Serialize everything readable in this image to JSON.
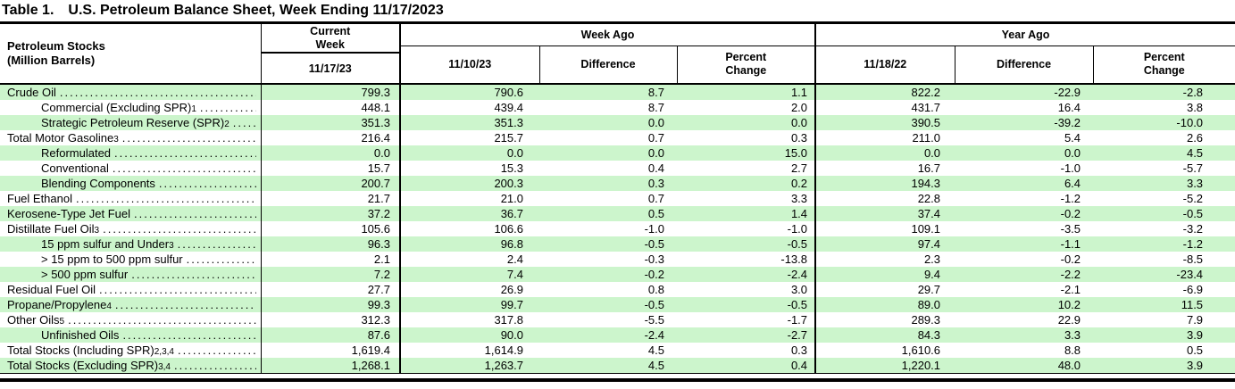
{
  "title": {
    "number": "Table 1.",
    "text": "U.S. Petroleum Balance Sheet, Week Ending 11/17/2023"
  },
  "colors": {
    "row_highlight": "#ccf5cc"
  },
  "header": {
    "stub_line1": "Petroleum Stocks",
    "stub_line2": "(Million Barrels)",
    "current_week_label": "Current Week",
    "current_week_date": "11/17/23",
    "week_ago": {
      "group_label": "Week Ago",
      "date": "11/10/23",
      "difference": "Difference",
      "percent_change": "Percent Change"
    },
    "year_ago": {
      "group_label": "Year Ago",
      "date": "11/18/22",
      "difference": "Difference",
      "percent_change": "Percent Change"
    }
  },
  "table": {
    "rows": [
      {
        "label": "Crude Oil",
        "sup": "",
        "indent": 0,
        "highlight": true,
        "current": "799.3",
        "wk": "790.6",
        "wk_diff": "8.7",
        "wk_pct": "1.1",
        "yr": "822.2",
        "yr_diff": "-22.9",
        "yr_pct": "-2.8"
      },
      {
        "label": "Commercial (Excluding SPR)",
        "sup": "1",
        "indent": 1,
        "highlight": false,
        "current": "448.1",
        "wk": "439.4",
        "wk_diff": "8.7",
        "wk_pct": "2.0",
        "yr": "431.7",
        "yr_diff": "16.4",
        "yr_pct": "3.8"
      },
      {
        "label": "Strategic Petroleum Reserve (SPR)",
        "sup": "2",
        "indent": 1,
        "highlight": true,
        "current": "351.3",
        "wk": "351.3",
        "wk_diff": "0.0",
        "wk_pct": "0.0",
        "yr": "390.5",
        "yr_diff": "-39.2",
        "yr_pct": "-10.0"
      },
      {
        "label": "Total Motor Gasoline",
        "sup": "3",
        "indent": 0,
        "highlight": false,
        "current": "216.4",
        "wk": "215.7",
        "wk_diff": "0.7",
        "wk_pct": "0.3",
        "yr": "211.0",
        "yr_diff": "5.4",
        "yr_pct": "2.6"
      },
      {
        "label": "Reformulated",
        "sup": "",
        "indent": 1,
        "highlight": true,
        "current": "0.0",
        "wk": "0.0",
        "wk_diff": "0.0",
        "wk_pct": "15.0",
        "yr": "0.0",
        "yr_diff": "0.0",
        "yr_pct": "4.5"
      },
      {
        "label": "Conventional",
        "sup": "",
        "indent": 1,
        "highlight": false,
        "current": "15.7",
        "wk": "15.3",
        "wk_diff": "0.4",
        "wk_pct": "2.7",
        "yr": "16.7",
        "yr_diff": "-1.0",
        "yr_pct": "-5.7"
      },
      {
        "label": "Blending Components",
        "sup": "",
        "indent": 1,
        "highlight": true,
        "current": "200.7",
        "wk": "200.3",
        "wk_diff": "0.3",
        "wk_pct": "0.2",
        "yr": "194.3",
        "yr_diff": "6.4",
        "yr_pct": "3.3"
      },
      {
        "label": "Fuel Ethanol",
        "sup": "",
        "indent": 0,
        "highlight": false,
        "current": "21.7",
        "wk": "21.0",
        "wk_diff": "0.7",
        "wk_pct": "3.3",
        "yr": "22.8",
        "yr_diff": "-1.2",
        "yr_pct": "-5.2"
      },
      {
        "label": "Kerosene-Type Jet Fuel",
        "sup": "",
        "indent": 0,
        "highlight": true,
        "current": "37.2",
        "wk": "36.7",
        "wk_diff": "0.5",
        "wk_pct": "1.4",
        "yr": "37.4",
        "yr_diff": "-0.2",
        "yr_pct": "-0.5"
      },
      {
        "label": "Distillate Fuel Oil",
        "sup": "3",
        "indent": 0,
        "highlight": false,
        "current": "105.6",
        "wk": "106.6",
        "wk_diff": "-1.0",
        "wk_pct": "-1.0",
        "yr": "109.1",
        "yr_diff": "-3.5",
        "yr_pct": "-3.2"
      },
      {
        "label": "15 ppm sulfur and Under",
        "sup": "3",
        "indent": 1,
        "highlight": true,
        "current": "96.3",
        "wk": "96.8",
        "wk_diff": "-0.5",
        "wk_pct": "-0.5",
        "yr": "97.4",
        "yr_diff": "-1.1",
        "yr_pct": "-1.2"
      },
      {
        "label": "> 15 ppm to 500 ppm sulfur",
        "sup": "",
        "indent": 1,
        "highlight": false,
        "current": "2.1",
        "wk": "2.4",
        "wk_diff": "-0.3",
        "wk_pct": "-13.8",
        "yr": "2.3",
        "yr_diff": "-0.2",
        "yr_pct": "-8.5"
      },
      {
        "label": "> 500 ppm sulfur",
        "sup": "",
        "indent": 1,
        "highlight": true,
        "current": "7.2",
        "wk": "7.4",
        "wk_diff": "-0.2",
        "wk_pct": "-2.4",
        "yr": "9.4",
        "yr_diff": "-2.2",
        "yr_pct": "-23.4"
      },
      {
        "label": "Residual Fuel Oil",
        "sup": "",
        "indent": 0,
        "highlight": false,
        "current": "27.7",
        "wk": "26.9",
        "wk_diff": "0.8",
        "wk_pct": "3.0",
        "yr": "29.7",
        "yr_diff": "-2.1",
        "yr_pct": "-6.9"
      },
      {
        "label": "Propane/Propylene",
        "sup": "4",
        "indent": 0,
        "highlight": true,
        "current": "99.3",
        "wk": "99.7",
        "wk_diff": "-0.5",
        "wk_pct": "-0.5",
        "yr": "89.0",
        "yr_diff": "10.2",
        "yr_pct": "11.5"
      },
      {
        "label": "Other Oils",
        "sup": "5",
        "indent": 0,
        "highlight": false,
        "current": "312.3",
        "wk": "317.8",
        "wk_diff": "-5.5",
        "wk_pct": "-1.7",
        "yr": "289.3",
        "yr_diff": "22.9",
        "yr_pct": "7.9"
      },
      {
        "label": "Unfinished Oils",
        "sup": "",
        "indent": 1,
        "highlight": true,
        "current": "87.6",
        "wk": "90.0",
        "wk_diff": "-2.4",
        "wk_pct": "-2.7",
        "yr": "84.3",
        "yr_diff": "3.3",
        "yr_pct": "3.9"
      },
      {
        "label": "Total Stocks (Including SPR)",
        "sup": "2,3,4",
        "indent": 0,
        "highlight": false,
        "current": "1,619.4",
        "wk": "1,614.9",
        "wk_diff": "4.5",
        "wk_pct": "0.3",
        "yr": "1,610.6",
        "yr_diff": "8.8",
        "yr_pct": "0.5"
      },
      {
        "label": "Total Stocks (Excluding SPR)",
        "sup": "3,4",
        "indent": 0,
        "highlight": true,
        "current": "1,268.1",
        "wk": "1,263.7",
        "wk_diff": "4.5",
        "wk_pct": "0.4",
        "yr": "1,220.1",
        "yr_diff": "48.0",
        "yr_pct": "3.9"
      }
    ]
  }
}
